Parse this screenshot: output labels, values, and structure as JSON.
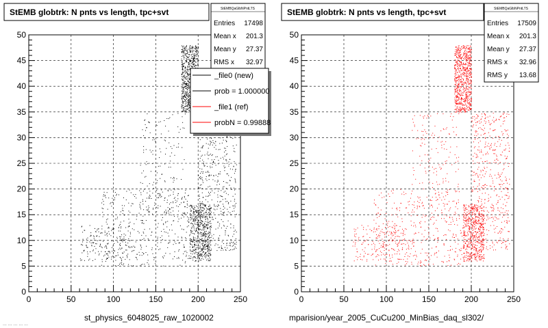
{
  "panels": [
    {
      "title": "StEMB globtrk: N pnts vs length, tpc+svt",
      "stats": {
        "header": "StEMBQaGlbNPntLTS",
        "rows": [
          {
            "label": "Entries",
            "value": "17498"
          },
          {
            "label": "Mean x",
            "value": "201.3"
          },
          {
            "label": "Mean y",
            "value": "27.37"
          },
          {
            "label": "RMS x",
            "value": "32.97"
          }
        ]
      },
      "xlabel": "st_physics_6048025_raw_1020002",
      "legend": [
        {
          "label": "_file0 (new)",
          "color": "#000000"
        },
        {
          "label": "prob = 1.000000",
          "color": "#000000"
        },
        {
          "label": "_file1 (ref)",
          "color": "#ff0000"
        },
        {
          "label": "probN = 0.99888",
          "color": "#ff0000"
        }
      ],
      "marker_color": "#000000"
    },
    {
      "title": "StEMB globtrk: N pnts vs length, tpc+svt",
      "stats": {
        "header": "StEMBQaGlbNPntLTS",
        "rows": [
          {
            "label": "Entries",
            "value": "17509"
          },
          {
            "label": "Mean x",
            "value": "201.3"
          },
          {
            "label": "Mean y",
            "value": "27.37"
          },
          {
            "label": "RMS x",
            "value": "32.96"
          },
          {
            "label": "RMS y",
            "value": "13.68"
          }
        ]
      },
      "xlabel": "mparision/year_2005_CuCu200_MinBias_daq_sl302/",
      "marker_color": "#ff0000"
    }
  ],
  "footer_fragment": "... ... ... ... ...",
  "chart_data": [
    {
      "type": "scatter",
      "title": "StEMB globtrk: N pnts vs length, tpc+svt",
      "xlabel": "st_physics_6048025_raw_1020002",
      "ylabel": "",
      "xlim": [
        0,
        250
      ],
      "ylim": [
        0,
        50
      ],
      "xticks": [
        0,
        50,
        100,
        150,
        200,
        250
      ],
      "yticks": [
        0,
        5,
        10,
        15,
        20,
        25,
        30,
        35,
        40,
        45,
        50
      ],
      "grid": true,
      "series": [
        {
          "name": "_file0 (new)",
          "color": "#000000"
        }
      ],
      "density_regions": [
        {
          "x": [
            180,
            200
          ],
          "y": [
            35,
            48
          ],
          "weight": 0.3
        },
        {
          "x": [
            190,
            215
          ],
          "y": [
            6,
            17
          ],
          "weight": 0.22
        },
        {
          "x": [
            200,
            245
          ],
          "y": [
            8,
            35
          ],
          "weight": 0.2
        },
        {
          "x": [
            85,
            190
          ],
          "y": [
            5,
            20
          ],
          "weight": 0.16
        },
        {
          "x": [
            130,
            185
          ],
          "y": [
            15,
            35
          ],
          "weight": 0.06
        },
        {
          "x": [
            60,
            120
          ],
          "y": [
            6,
            13
          ],
          "weight": 0.06
        }
      ]
    },
    {
      "type": "scatter",
      "title": "StEMB globtrk: N pnts vs length, tpc+svt",
      "xlabel": "mparision/year_2005_CuCu200_MinBias_daq_sl302/",
      "ylabel": "",
      "xlim": [
        0,
        250
      ],
      "ylim": [
        0,
        50
      ],
      "xticks": [
        0,
        50,
        100,
        150,
        200,
        250
      ],
      "yticks": [
        0,
        5,
        10,
        15,
        20,
        25,
        30,
        35,
        40,
        45,
        50
      ],
      "grid": true,
      "series": [
        {
          "name": "_file1 (ref)",
          "color": "#ff0000"
        }
      ],
      "density_regions": [
        {
          "x": [
            180,
            200
          ],
          "y": [
            35,
            48
          ],
          "weight": 0.3
        },
        {
          "x": [
            190,
            215
          ],
          "y": [
            6,
            17
          ],
          "weight": 0.22
        },
        {
          "x": [
            200,
            245
          ],
          "y": [
            8,
            35
          ],
          "weight": 0.2
        },
        {
          "x": [
            85,
            190
          ],
          "y": [
            5,
            20
          ],
          "weight": 0.16
        },
        {
          "x": [
            130,
            185
          ],
          "y": [
            15,
            35
          ],
          "weight": 0.06
        },
        {
          "x": [
            60,
            120
          ],
          "y": [
            6,
            13
          ],
          "weight": 0.06
        }
      ]
    }
  ]
}
